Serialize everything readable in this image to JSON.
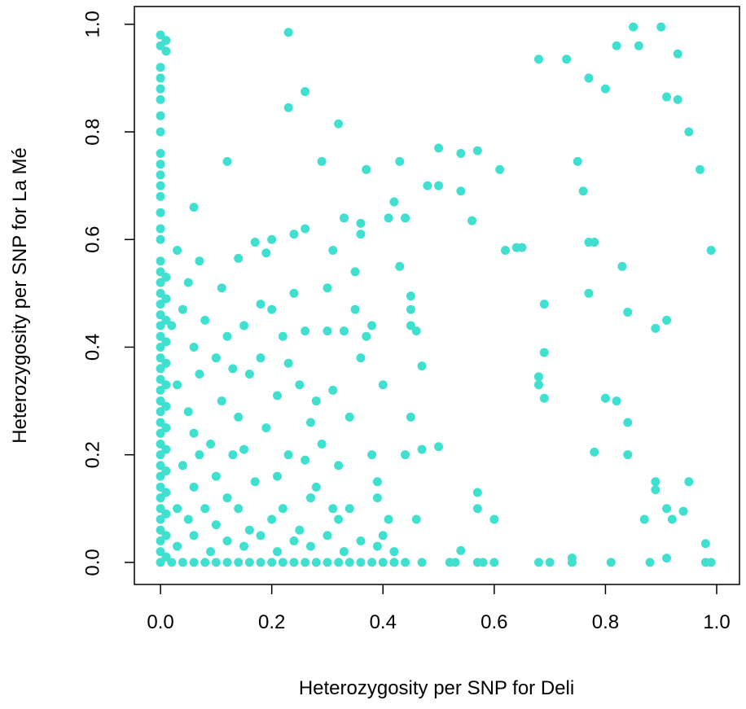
{
  "chart_data": {
    "type": "scatter",
    "x_label": "Heterozygosity per SNP for Deli",
    "y_label": "Heterozygosity per SNP for La Mé",
    "color": "#40e0d0",
    "xlim": [
      -0.047,
      1.041
    ],
    "ylim": [
      -0.041,
      1.033
    ],
    "xticks": [
      {
        "value": 0,
        "label": "0.0"
      },
      0.2,
      0.4,
      0.6,
      0.8,
      {
        "value": 1,
        "label": "1.0"
      }
    ],
    "yticks": [
      {
        "value": 0,
        "label": "0.0"
      },
      0.2,
      0.4,
      0.6,
      0.8,
      {
        "value": 1,
        "label": "1.0"
      }
    ],
    "x": [
      0,
      0,
      0,
      0,
      0,
      0,
      0,
      0,
      0,
      0,
      0,
      0,
      0,
      0,
      0,
      0,
      0,
      0,
      0,
      0,
      0,
      0,
      0,
      0,
      0,
      0,
      0,
      0,
      0,
      0,
      0,
      0,
      0,
      0,
      0,
      0,
      0,
      0,
      0,
      0,
      0,
      0,
      0,
      0,
      0,
      0.01,
      0.01,
      0.01,
      0.01,
      0.01,
      0.01,
      0.01,
      0.01,
      0.01,
      0.01,
      0.01,
      0.01,
      0.01,
      0.01,
      0.01,
      0.01,
      0.02,
      0.04,
      0.06,
      0.08,
      0.1,
      0.12,
      0.14,
      0.16,
      0.18,
      0.2,
      0.22,
      0.24,
      0.26,
      0.28,
      0.3,
      0.32,
      0.34,
      0.36,
      0.38,
      0.4,
      0.42,
      0.44,
      0.47,
      0.52,
      0.53,
      0.57,
      0.58,
      0.6,
      0.68,
      0.7,
      0.74,
      0.81,
      0.88,
      0.98,
      0.99,
      0.03,
      0.06,
      0.09,
      0.12,
      0.15,
      0.18,
      0.21,
      0.24,
      0.27,
      0.3,
      0.33,
      0.36,
      0.39,
      0.42,
      0.05,
      0.1,
      0.14,
      0.2,
      0.25,
      0.32,
      0.02,
      0.04,
      0.06,
      0.08,
      0.1,
      0.03,
      0.05,
      0.07,
      0.09,
      0.04,
      0.06,
      0.08,
      0.11,
      0.12,
      0.13,
      0.14,
      0.15,
      0.16,
      0.17,
      0.18,
      0.19,
      0.2,
      0.21,
      0.22,
      0.23,
      0.24,
      0.25,
      0.26,
      0.27,
      0.28,
      0.29,
      0.3,
      0.31,
      0.32,
      0.33,
      0.34,
      0.35,
      0.36,
      0.37,
      0.38,
      0.39,
      0.4,
      0.41,
      0.12,
      0.16,
      0.22,
      0.28,
      0.34,
      0.06,
      0.1,
      0.15,
      0.21,
      0.27,
      0.31,
      0.23,
      0.18,
      0.13,
      0.07,
      0.03,
      0.26,
      0.23,
      0.23,
      0.26,
      0.32,
      0.12,
      0.06,
      0.29,
      0.37,
      0.43,
      0.5,
      0.5,
      0.48,
      0.54,
      0.57,
      0.61,
      0.54,
      0.68,
      0.73,
      0.77,
      0.8,
      0.82,
      0.85,
      0.86,
      0.9,
      0.93,
      0.91,
      0.93,
      0.95,
      0.97,
      0.99,
      0.75,
      0.76,
      0.77,
      0.78,
      0.62,
      0.64,
      0.65,
      0.56,
      0.83,
      0.77,
      0.84,
      0.91,
      0.89,
      0.69,
      0.69,
      0.68,
      0.68,
      0.69,
      0.8,
      0.82,
      0.84,
      0.84,
      0.78,
      0.89,
      0.89,
      0.95,
      0.94,
      0.91,
      0.92,
      0.87,
      0.98,
      0.91,
      0.74,
      0.57,
      0.57,
      0.6,
      0.5,
      0.54,
      0.45,
      0.45,
      0.45,
      0.46,
      0.43,
      0.44,
      0.42,
      0.41,
      0.36,
      0.36,
      0.31,
      0.33,
      0.26,
      0.24,
      0.2,
      0.17,
      0.19,
      0.14,
      0.07,
      0.03,
      0.05,
      0.11,
      0.3,
      0.35,
      0.38,
      0.47,
      0.45,
      0.44,
      0.47,
      0.46,
      0.39,
      0.4
    ],
    "values": [
      0,
      0.02,
      0.04,
      0.06,
      0.08,
      0.1,
      0.12,
      0.14,
      0.16,
      0.18,
      0.2,
      0.22,
      0.24,
      0.26,
      0.28,
      0.3,
      0.32,
      0.34,
      0.36,
      0.38,
      0.4,
      0.42,
      0.44,
      0.46,
      0.48,
      0.5,
      0.52,
      0.54,
      0.56,
      0.6,
      0.62,
      0.65,
      0.68,
      0.7,
      0.72,
      0.74,
      0.76,
      0.8,
      0.83,
      0.86,
      0.88,
      0.9,
      0.92,
      0.96,
      0.98,
      0.01,
      0.05,
      0.09,
      0.13,
      0.17,
      0.21,
      0.25,
      0.29,
      0.33,
      0.37,
      0.41,
      0.45,
      0.49,
      0.53,
      0.95,
      0.97,
      0,
      0,
      0,
      0,
      0,
      0,
      0,
      0,
      0,
      0,
      0,
      0,
      0,
      0,
      0,
      0,
      0,
      0,
      0,
      0,
      0,
      0,
      0,
      0,
      0,
      0,
      0,
      0,
      0,
      0,
      0,
      0,
      0,
      0,
      0,
      0.03,
      0.05,
      0.02,
      0.04,
      0.03,
      0.05,
      0.02,
      0.04,
      0.03,
      0.05,
      0.02,
      0.04,
      0.03,
      0.02,
      0.08,
      0.07,
      0.1,
      0.08,
      0.06,
      0.08,
      0.44,
      0.47,
      0.4,
      0.45,
      0.38,
      0.33,
      0.28,
      0.35,
      0.22,
      0.18,
      0.14,
      0.1,
      0.3,
      0.42,
      0.2,
      0.27,
      0.44,
      0.35,
      0.15,
      0.38,
      0.25,
      0.47,
      0.31,
      0.42,
      0.2,
      0.5,
      0.33,
      0.43,
      0.12,
      0.3,
      0.22,
      0.43,
      0.32,
      0.18,
      0.43,
      0.27,
      0.47,
      0.38,
      0.42,
      0.2,
      0.15,
      0.33,
      0.08,
      0.12,
      0.06,
      0.1,
      0.14,
      0.1,
      0.24,
      0.16,
      0.21,
      0.16,
      0.26,
      0.1,
      0.37,
      0.48,
      0.36,
      0.2,
      0.1,
      0.19,
      0.985,
      0.845,
      0.875,
      0.815,
      0.745,
      0.66,
      0.745,
      0.73,
      0.745,
      0.77,
      0.7,
      0.7,
      0.76,
      0.765,
      0.73,
      0.69,
      0.935,
      0.935,
      0.9,
      0.88,
      0.96,
      0.995,
      0.96,
      0.995,
      0.945,
      0.865,
      0.86,
      0.8,
      0.73,
      0.58,
      0.745,
      0.69,
      0.595,
      0.595,
      0.58,
      0.585,
      0.585,
      0.635,
      0.55,
      0.5,
      0.465,
      0.45,
      0.435,
      0.48,
      0.39,
      0.345,
      0.33,
      0.305,
      0.305,
      0.3,
      0.26,
      0.2,
      0.205,
      0.15,
      0.135,
      0.15,
      0.095,
      0.1,
      0.08,
      0.08,
      0.035,
      0.008,
      0.008,
      0.13,
      0.1,
      0.08,
      0.215,
      0.022,
      0.495,
      0.47,
      0.44,
      0.43,
      0.55,
      0.64,
      0.67,
      0.64,
      0.63,
      0.61,
      0.58,
      0.64,
      0.62,
      0.61,
      0.6,
      0.595,
      0.575,
      0.565,
      0.56,
      0.58,
      0.52,
      0.51,
      0.51,
      0.54,
      0.44,
      0.365,
      0.27,
      0.2,
      0.21,
      0.08,
      0.12,
      0.05
    ]
  }
}
